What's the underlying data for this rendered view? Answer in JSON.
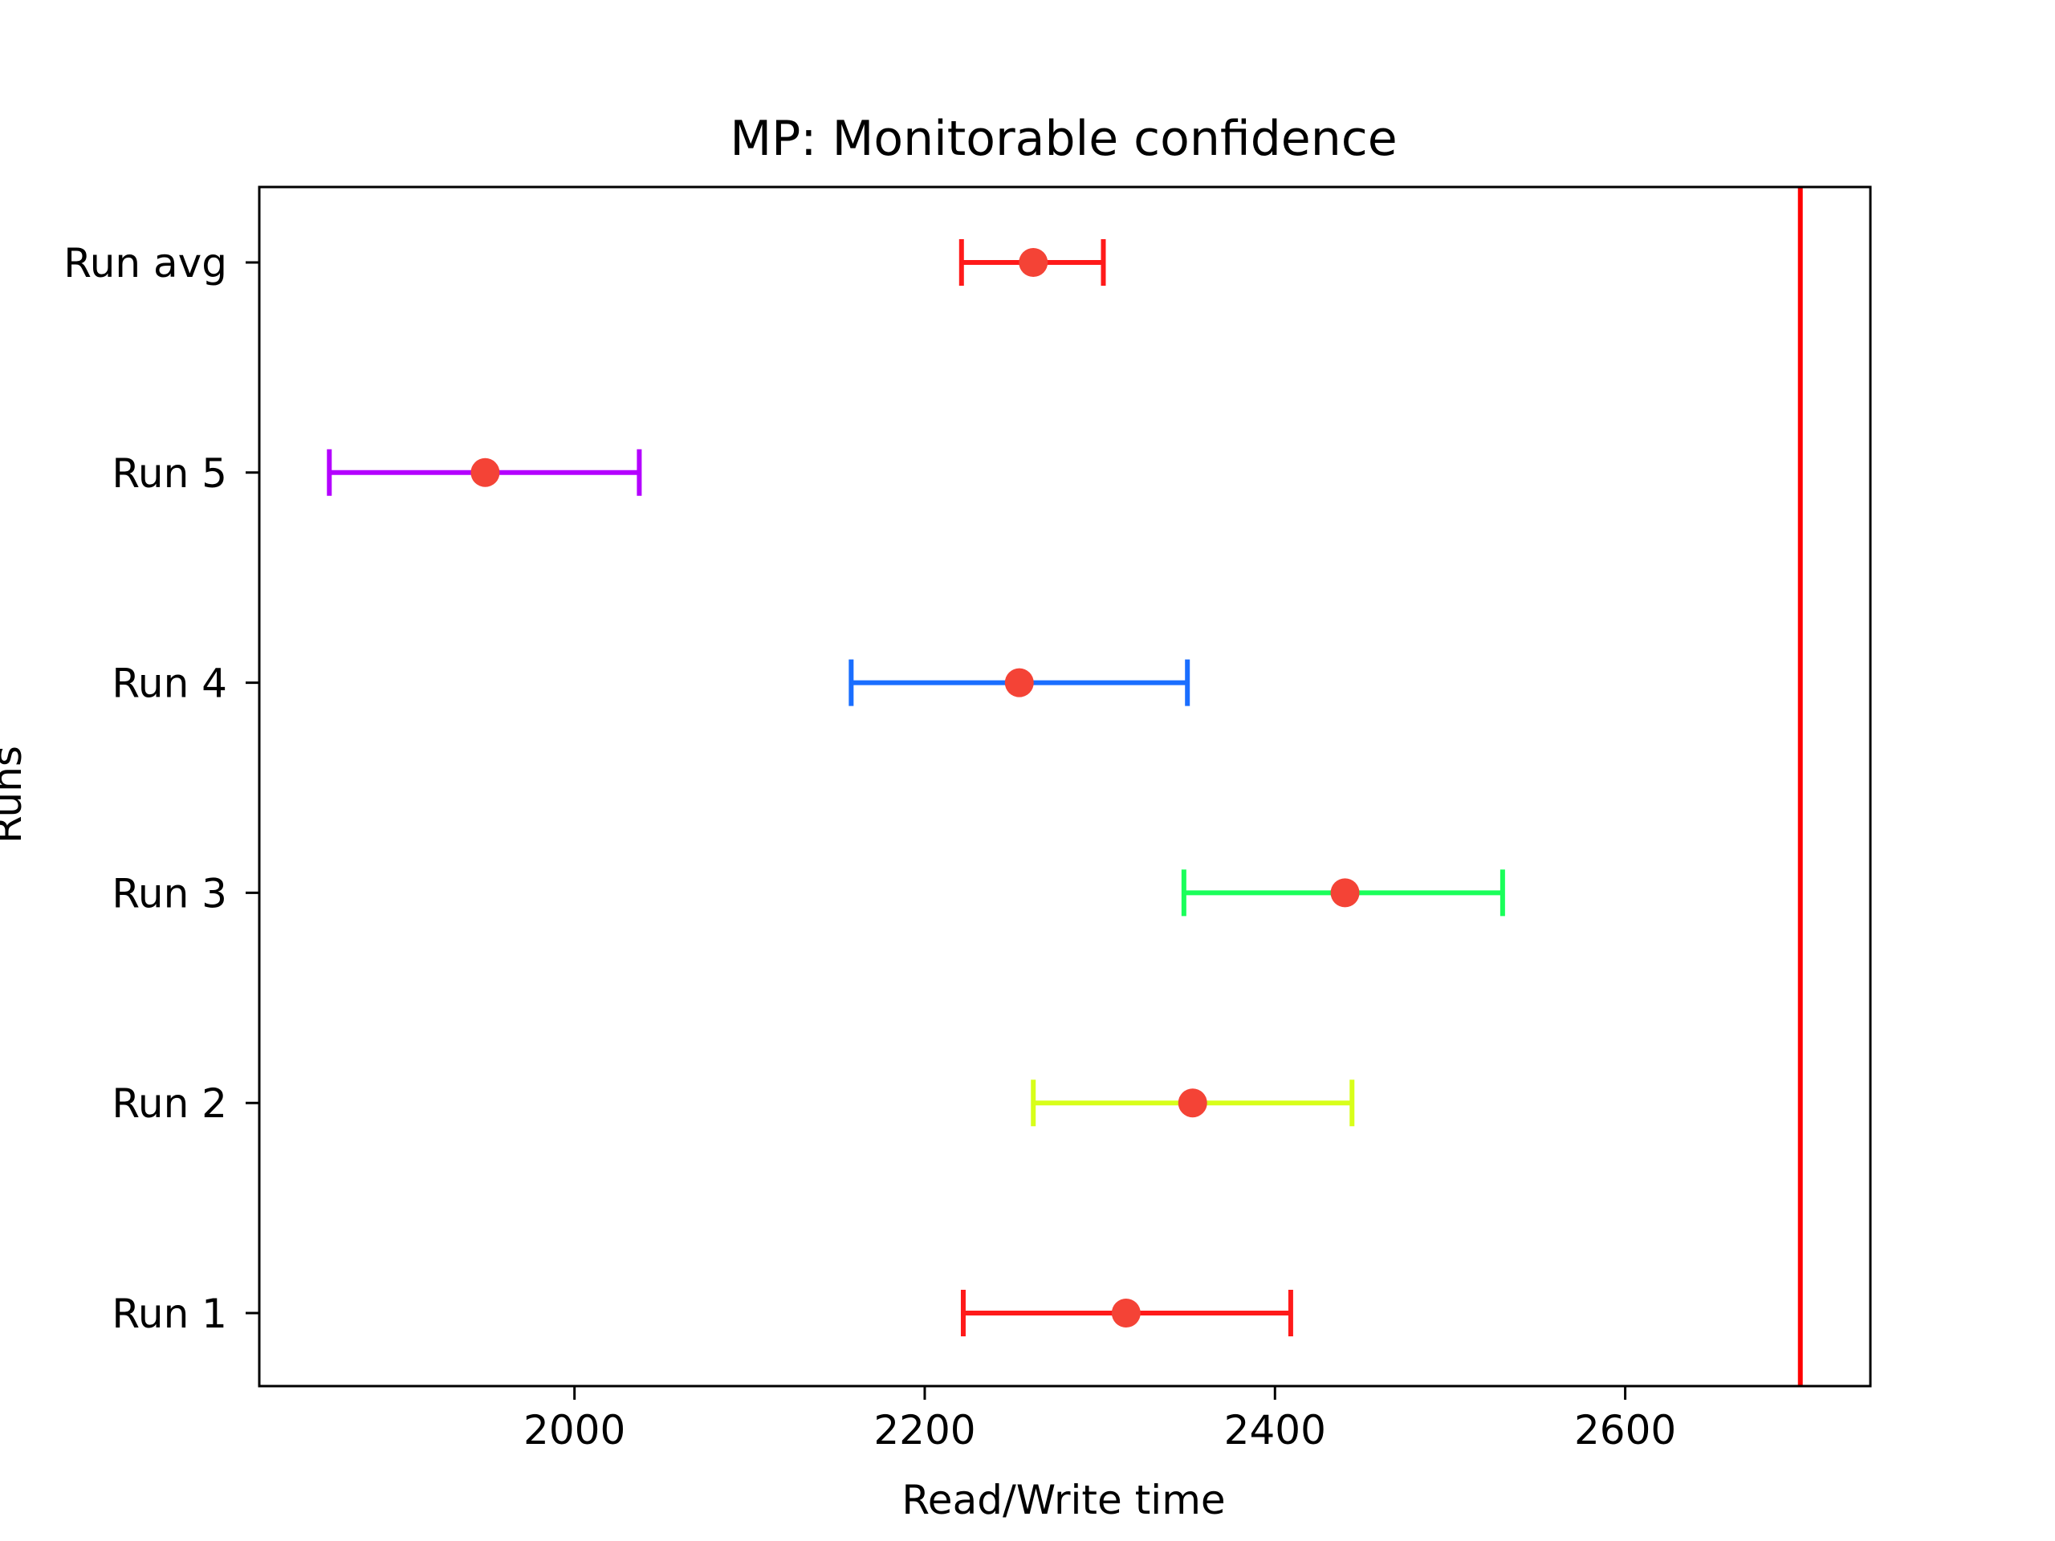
{
  "chart_data": {
    "type": "errorbar",
    "title": "MP: Monitorable confidence",
    "xlabel": "Read/Write time",
    "ylabel": "Runs",
    "xlim": [
      1820,
      2740
    ],
    "x_ticks": [
      2000,
      2200,
      2400,
      2600
    ],
    "categories": [
      "Run 1",
      "Run 2",
      "Run 3",
      "Run 4",
      "Run 5",
      "Run avg"
    ],
    "points": [
      {
        "label": "Run 1",
        "mean": 2315,
        "lower": 2222,
        "upper": 2409,
        "color": "#ff1a1a"
      },
      {
        "label": "Run 2",
        "mean": 2353,
        "lower": 2262,
        "upper": 2444,
        "color": "#d8ff1a"
      },
      {
        "label": "Run 3",
        "mean": 2440,
        "lower": 2348,
        "upper": 2530,
        "color": "#1aff5a"
      },
      {
        "label": "Run 4",
        "mean": 2254,
        "lower": 2158,
        "upper": 2350,
        "color": "#1a6eff"
      },
      {
        "label": "Run 5",
        "mean": 1949,
        "lower": 1860,
        "upper": 2037,
        "color": "#b400ff"
      },
      {
        "label": "Run avg",
        "mean": 2262,
        "lower": 2221,
        "upper": 2302,
        "color": "#ff1a1a"
      }
    ],
    "marker_color": "#f44336",
    "reference_line": {
      "x": 2700,
      "color": "#ff0000"
    },
    "grid": false,
    "legend": "none"
  }
}
